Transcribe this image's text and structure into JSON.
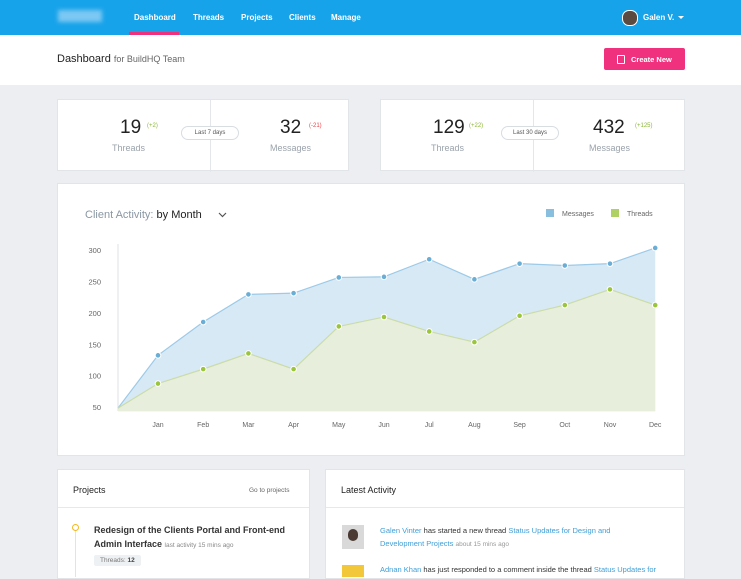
{
  "nav": {
    "items": [
      "Dashboard",
      "Threads",
      "Projects",
      "Clients",
      "Manage"
    ],
    "user": "Galen V."
  },
  "header": {
    "title": "Dashboard",
    "subtitle": "for BuildHQ Team",
    "button": "Create New"
  },
  "stats": [
    {
      "period": "Last 7 days",
      "items": [
        {
          "value": 19,
          "change": "(+2)",
          "label": "Threads"
        },
        {
          "value": 32,
          "change": "(-21)",
          "label": "Messages"
        }
      ]
    },
    {
      "period": "Last 30 days",
      "items": [
        {
          "value": 129,
          "change": "(+22)",
          "label": "Threads"
        },
        {
          "value": 432,
          "change": "(+125)",
          "label": "Messages"
        }
      ]
    }
  ],
  "chart_data": {
    "type": "area",
    "title": "Client Activity:",
    "title_option": "by Month",
    "categories": [
      null,
      "Jan",
      "Feb",
      "Mar",
      "Apr",
      "May",
      "Jun",
      "Jul",
      "Aug",
      "Sep",
      "Oct",
      "Nov",
      "Dec"
    ],
    "series": [
      {
        "name": "Messages",
        "color": "#6aaed6",
        "values": [
          50,
          134,
          187,
          231,
          233,
          258,
          259,
          287,
          255,
          280,
          277,
          280,
          305
        ]
      },
      {
        "name": "Threads",
        "color": "#9bc53d",
        "values": [
          50,
          89,
          112,
          137,
          112,
          180,
          195,
          172,
          155,
          197,
          214,
          239,
          214
        ]
      }
    ],
    "ylim": [
      45,
      310
    ],
    "yticks": [
      50,
      100,
      150,
      200,
      250,
      300
    ],
    "grid": false,
    "legend": "top-right"
  },
  "projects": {
    "title": "Projects",
    "link": "Go to projects",
    "items": [
      {
        "name": "Redesign of the Clients Portal and Front-end Admin Interface",
        "activity": "last activity 15 mins ago",
        "threads_label": "Threads:",
        "threads": 12
      }
    ]
  },
  "activity": {
    "title": "Latest Activity",
    "items": [
      {
        "user": "Galen Vinter",
        "action": "has started a new thread",
        "thread": "Status Updates for Design and Development Projects",
        "time": "about 15 mins ago"
      },
      {
        "user": "Adnan Khan",
        "action": "has just responded to a comment inside the thread",
        "thread": "Status Updates for"
      }
    ]
  }
}
